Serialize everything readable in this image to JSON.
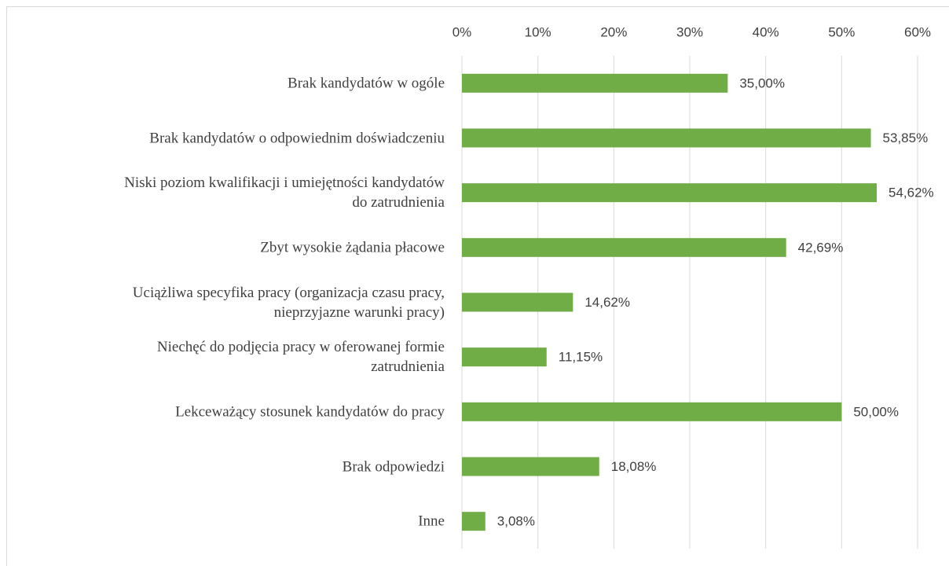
{
  "chart_data": {
    "type": "bar",
    "orientation": "horizontal",
    "categories": [
      "Brak kandydatów w ogóle",
      "Brak kandydatów o odpowiednim doświadczeniu",
      "Niski poziom kwalifikacji i umiejętności kandydatów\ndo zatrudnienia",
      "Zbyt wysokie żądania płacowe",
      "Uciążliwa specyfika pracy (organizacja czasu pracy,\nnieprzyjazne warunki pracy)",
      "Niechęć do podjęcia pracy w oferowanej formie\nzatrudnienia",
      "Lekceważący stosunek kandydatów do pracy",
      "Brak odpowiedzi",
      "Inne"
    ],
    "values": [
      35.0,
      53.85,
      54.62,
      42.69,
      14.62,
      11.15,
      50.0,
      18.08,
      3.08
    ],
    "value_labels": [
      "35,00%",
      "53,85%",
      "54,62%",
      "42,69%",
      "14,62%",
      "11,15%",
      "50,00%",
      "18,08%",
      "3,08%"
    ],
    "color": "#70ad47",
    "xlim": [
      0,
      60
    ],
    "xticks": [
      {
        "value": 0,
        "label": "0%"
      },
      {
        "value": 10,
        "label": "10%"
      },
      {
        "value": 20,
        "label": "20%"
      },
      {
        "value": 30,
        "label": "30%"
      },
      {
        "value": 40,
        "label": "40%"
      },
      {
        "value": 50,
        "label": "50%"
      },
      {
        "value": 60,
        "label": "60%"
      }
    ],
    "grid": true
  }
}
